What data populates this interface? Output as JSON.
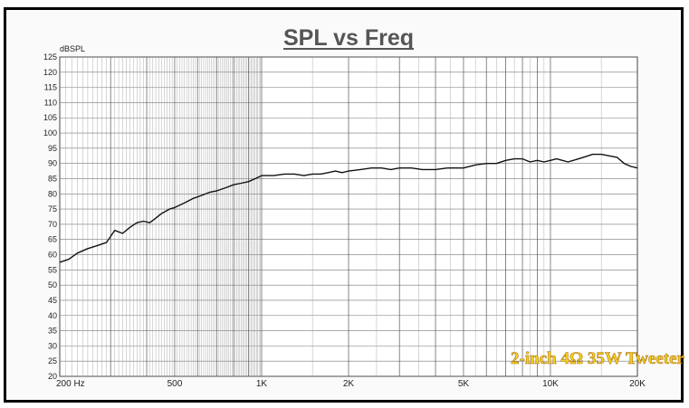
{
  "chart_data": {
    "type": "line",
    "title": "SPL vs Freq",
    "ylabel": "dBSPL",
    "x_scale": "log",
    "xlim": [
      200,
      20000
    ],
    "ylim": [
      20,
      125
    ],
    "grid": true,
    "y_ticks": [
      20,
      25,
      30,
      35,
      40,
      45,
      50,
      55,
      60,
      65,
      70,
      75,
      80,
      85,
      90,
      95,
      100,
      105,
      110,
      115,
      120,
      125
    ],
    "x_tick_labels": [
      {
        "value": 200,
        "label": "200 Hz"
      },
      {
        "value": 500,
        "label": "500"
      },
      {
        "value": 1000,
        "label": "1K"
      },
      {
        "value": 2000,
        "label": "2K"
      },
      {
        "value": 5000,
        "label": "5K"
      },
      {
        "value": 10000,
        "label": "10K"
      },
      {
        "value": 20000,
        "label": "20K"
      }
    ],
    "series": [
      {
        "color": "#111111",
        "x": [
          200,
          215,
          230,
          250,
          270,
          290,
          300,
          310,
          330,
          350,
          370,
          390,
          410,
          430,
          450,
          480,
          500,
          540,
          580,
          620,
          660,
          700,
          750,
          800,
          850,
          900,
          950,
          1000,
          1050,
          1100,
          1200,
          1300,
          1400,
          1500,
          1600,
          1700,
          1800,
          1900,
          2000,
          2200,
          2400,
          2600,
          2800,
          3000,
          3300,
          3600,
          4000,
          4400,
          4800,
          5000,
          5500,
          6000,
          6500,
          7000,
          7500,
          8000,
          8500,
          9000,
          9500,
          10000,
          10500,
          11000,
          11500,
          12000,
          13000,
          14000,
          15000,
          16000,
          17000,
          18000,
          19000,
          20000
        ],
        "y": [
          57.5,
          58.5,
          60.5,
          62,
          63,
          64,
          66,
          68,
          67,
          69,
          70.5,
          71,
          70.5,
          72,
          73.5,
          75,
          75.5,
          77,
          78.5,
          79.5,
          80.5,
          81,
          82,
          83,
          83.5,
          84,
          85,
          86,
          86,
          86,
          86.5,
          86.5,
          86,
          86.5,
          86.5,
          87,
          87.5,
          87,
          87.5,
          88,
          88.5,
          88.5,
          88,
          88.5,
          88.5,
          88,
          88,
          88.5,
          88.5,
          88.5,
          89.5,
          90,
          90,
          91,
          91.5,
          91.5,
          90.5,
          91,
          90.5,
          91,
          91.5,
          91,
          90.5,
          91,
          92,
          93,
          93,
          92.5,
          92,
          90,
          89,
          88.5
        ]
      }
    ],
    "annotation": "2-inch 4Ω 35W Tweeter"
  }
}
